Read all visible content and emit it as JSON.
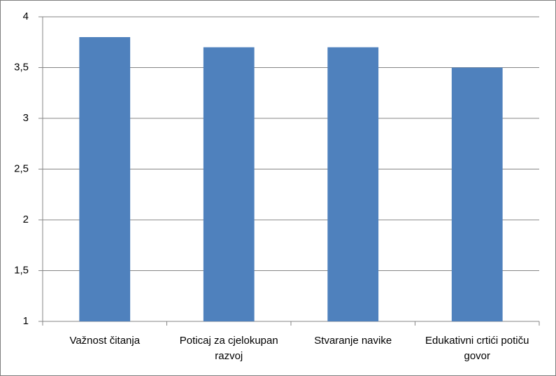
{
  "chart_data": {
    "type": "bar",
    "categories": [
      "Važnost čitanja",
      "Poticaj za cjelokupan razvoj",
      "Stvaranje navike",
      "Edukativni crtići potiču govor"
    ],
    "values": [
      3.8,
      3.7,
      3.7,
      3.5
    ],
    "color": "#4f81bd",
    "ylim": [
      1,
      4
    ],
    "yticks": [
      1,
      {
        "value": 1.5,
        "label": "1,5"
      },
      2,
      {
        "value": 2.5,
        "label": "2,5"
      },
      3,
      {
        "value": 3.5,
        "label": "3,5"
      },
      4
    ],
    "grid": true
  }
}
